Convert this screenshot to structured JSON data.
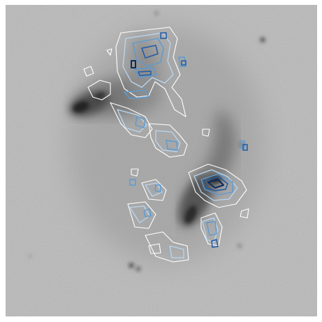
{
  "image": {
    "kind": "grayscale astronomical image of an interacting galaxy pair with overlaid blue/white contour lines",
    "colors": {
      "border": "#ffffff",
      "sky": "#b8b8b8",
      "galaxy_core": "#2a2a2a",
      "contour_outer": "#ffffff",
      "contour_light_blue": "#b9d7f2",
      "contour_mid_blue": "#5b9bd5",
      "contour_dark_blue": "#1f5aa6",
      "contour_darkest": "#0b2a5a"
    }
  }
}
